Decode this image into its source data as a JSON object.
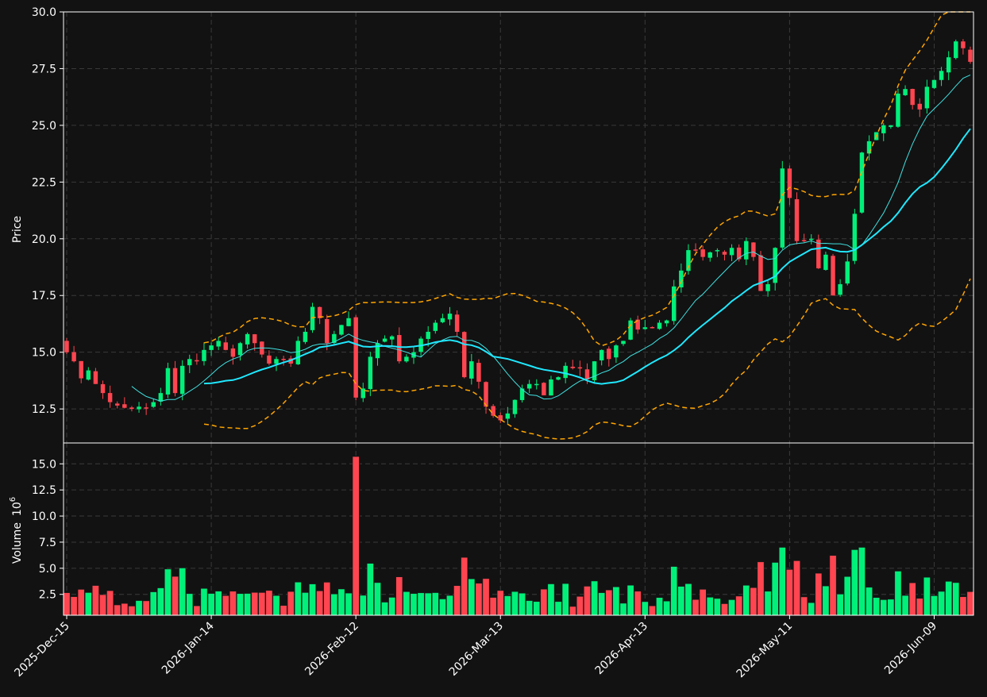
{
  "chart_data": {
    "type": "candlestick",
    "price_panel": {
      "ylabel": "Price",
      "ylim": [
        11.0,
        30.0
      ],
      "yticks": [
        12.5,
        15.0,
        17.5,
        20.0,
        22.5,
        25.0,
        27.5,
        30.0
      ],
      "ytick_labels": [
        "12.5",
        "15.0",
        "17.5",
        "20.0",
        "22.5",
        "25.0",
        "27.5",
        "30.0"
      ],
      "grid": true
    },
    "volume_panel": {
      "ylabel": "Volume",
      "yunit": "10",
      "yunit_exp": "6",
      "ylim": [
        0.5,
        17.0
      ],
      "yticks": [
        2.5,
        5.0,
        7.5,
        10.0,
        12.5,
        15.0
      ],
      "ytick_labels": [
        "2.5",
        "5.0",
        "7.5",
        "10.0",
        "12.5",
        "15.0"
      ],
      "grid": true
    },
    "x_ticks": [
      {
        "index": 0,
        "label": "2025-Dec-15"
      },
      {
        "index": 20,
        "label": "2026-Jan-14"
      },
      {
        "index": 40,
        "label": "2026-Feb-12"
      },
      {
        "index": 60,
        "label": "2026-Mar-13"
      },
      {
        "index": 80,
        "label": "2026-Apr-13"
      },
      {
        "index": 100,
        "label": "2026-May-11"
      },
      {
        "index": 120,
        "label": "2026-Jun-09"
      }
    ],
    "colors": {
      "up": "#00f07a",
      "down": "#ff4550",
      "sma_short": "#40e0e0",
      "sma_long": "#20e8ff",
      "bands": "#ffa500",
      "background": "#121212",
      "frame": "#ffffff"
    },
    "series": [
      {
        "name": "SMA short",
        "role": "sma_short",
        "period": 10
      },
      {
        "name": "SMA long",
        "role": "sma_long",
        "period": 20
      },
      {
        "name": "Bollinger upper",
        "role": "upper",
        "period": 20
      },
      {
        "name": "Bollinger lower",
        "role": "lower",
        "period": 20
      }
    ],
    "close": [
      15.0,
      14.6,
      13.85,
      14.2,
      13.6,
      13.2,
      12.8,
      12.65,
      12.55,
      12.5,
      12.6,
      12.55,
      12.8,
      13.2,
      14.3,
      13.2,
      14.4,
      14.7,
      14.6,
      15.1,
      15.3,
      15.5,
      15.1,
      14.8,
      15.4,
      15.8,
      15.4,
      14.9,
      14.5,
      14.7,
      14.7,
      14.5,
      15.5,
      15.9,
      17.0,
      16.5,
      15.4,
      15.8,
      16.2,
      16.5,
      13.0,
      13.4,
      14.8,
      15.4,
      15.6,
      15.7,
      14.6,
      14.8,
      15.0,
      15.6,
      15.9,
      16.3,
      16.5,
      16.7,
      15.9,
      13.9,
      14.6,
      13.7,
      12.6,
      12.2,
      12.0,
      12.3,
      12.9,
      13.4,
      13.6,
      13.6,
      13.1,
      13.8,
      13.9,
      14.4,
      14.3,
      14.3,
      13.8,
      14.6,
      15.1,
      14.7,
      15.3,
      15.5,
      16.4,
      16.0,
      16.1,
      16.1,
      16.3,
      16.4,
      17.9,
      18.6,
      19.5,
      19.5,
      19.2,
      19.4,
      19.5,
      19.3,
      19.6,
      19.1,
      19.9,
      19.2,
      17.7,
      18.0,
      19.6,
      23.1,
      21.8,
      19.9,
      19.9,
      20.0,
      18.7,
      19.3,
      17.5,
      18.0,
      19.0,
      21.1,
      23.8,
      24.3,
      24.7,
      25.0,
      25.0,
      26.4,
      26.6,
      25.9,
      25.7,
      26.7,
      27.0,
      27.4,
      28.0,
      28.7,
      28.4,
      27.8
    ]
  }
}
